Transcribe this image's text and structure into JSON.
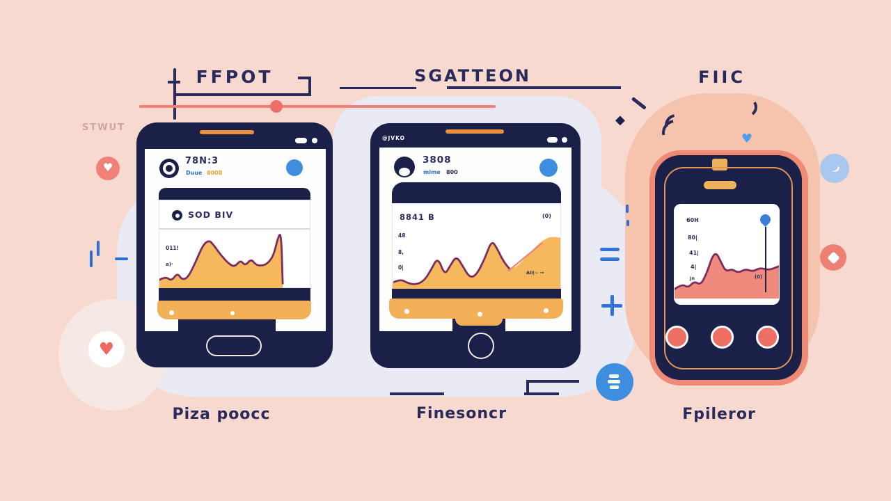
{
  "colors": {
    "background": "#f7d9cf",
    "blob": "#e9eaf3",
    "peach": "#f6c4ac",
    "navy": "#1b2049",
    "line_navy": "#272a5b",
    "orange": "#f2b159",
    "coral": "#ee7f72",
    "salmon": "#ef8177",
    "blue": "#3e8ee0",
    "light_blue": "#a9c8ee",
    "purple": "#7b2d5e"
  },
  "top_labels": {
    "first": "FFPOT",
    "second": "SGATTEON",
    "third": "FIIC"
  },
  "bottom_labels": {
    "first": "Piza poocc",
    "second": "Finesoncr",
    "third": "Fpileror"
  },
  "decor": {
    "side_text": "STWUT"
  },
  "icons": {
    "heart": "♥",
    "diamond": "◆"
  },
  "device1": {
    "header": {
      "title": "78N:3",
      "subtitle": "Duue",
      "subtitle2": "8008"
    },
    "card": {
      "title": "SOD BIV",
      "chart_note_1": "011!",
      "chart_note_2": "a)·"
    }
  },
  "device2": {
    "bezel_text": "@JVKO",
    "header": {
      "title": "3808",
      "subtitle": "mime",
      "subtitle2": "800"
    },
    "card": {
      "title": "8841 B",
      "icon_label": "(0)",
      "ticks": [
        "48",
        "8,",
        "0|"
      ],
      "annotation": "A0|~ →"
    }
  },
  "device3": {
    "ticks": [
      "60H",
      "80|",
      "41|",
      "4|"
    ],
    "note_left": "Jn",
    "note_right": "(0)"
  },
  "chart_data": {
    "device1_chart": {
      "type": "area",
      "description": "wavy area chart with tall spike at right",
      "line_color": "#7b2d5e",
      "fill_color": "#f5b85d",
      "line": [
        [
          0,
          43
        ],
        [
          4,
          40
        ],
        [
          8,
          44
        ],
        [
          12,
          37
        ],
        [
          15,
          43
        ],
        [
          19,
          41
        ],
        [
          24,
          28
        ],
        [
          29,
          13
        ],
        [
          33,
          9
        ],
        [
          36,
          13
        ],
        [
          41,
          22
        ],
        [
          46,
          29
        ],
        [
          50,
          32
        ],
        [
          54,
          26
        ],
        [
          57,
          31
        ],
        [
          61,
          25
        ],
        [
          64,
          30
        ],
        [
          68,
          31
        ],
        [
          72,
          29
        ],
        [
          76,
          22
        ],
        [
          79,
          6
        ],
        [
          81,
          3
        ],
        [
          82,
          46
        ]
      ],
      "base": 50
    },
    "device2_chart": {
      "type": "area",
      "description": "rising multi-peak area chart with projection curve",
      "line_color": "#7b2d5e",
      "fill_color": "#f5b85d",
      "extra_color": "#e8857a",
      "area": [
        [
          0,
          45
        ],
        [
          5,
          43
        ],
        [
          9,
          46
        ],
        [
          14,
          47
        ],
        [
          19,
          44
        ],
        [
          23,
          36
        ],
        [
          27,
          28
        ],
        [
          31,
          40
        ],
        [
          34,
          34
        ],
        [
          38,
          26
        ],
        [
          42,
          34
        ],
        [
          46,
          42
        ],
        [
          50,
          40
        ],
        [
          55,
          28
        ],
        [
          59,
          16
        ],
        [
          62,
          20
        ],
        [
          66,
          30
        ],
        [
          70,
          36
        ],
        [
          75,
          33
        ],
        [
          81,
          25
        ],
        [
          88,
          16
        ],
        [
          94,
          12
        ],
        [
          100,
          13
        ]
      ],
      "line": [
        [
          1,
          45
        ],
        [
          5,
          43
        ],
        [
          9,
          46
        ],
        [
          14,
          47
        ],
        [
          19,
          44
        ],
        [
          23,
          36
        ],
        [
          27,
          27
        ],
        [
          31,
          40
        ],
        [
          34,
          34
        ],
        [
          38,
          26
        ],
        [
          42,
          34
        ],
        [
          46,
          42
        ],
        [
          50,
          40
        ],
        [
          55,
          28
        ],
        [
          59,
          15
        ],
        [
          62,
          20
        ],
        [
          66,
          30
        ],
        [
          70,
          36
        ]
      ],
      "extra": [
        [
          69,
          37
        ],
        [
          76,
          30
        ],
        [
          83,
          23
        ],
        [
          89,
          17
        ]
      ],
      "base": 50
    },
    "device3_chart": {
      "type": "area",
      "description": "small coral area chart with purple line",
      "line_color": "#7b2d5e",
      "fill_color": "#f08a7c",
      "line": [
        [
          0,
          40
        ],
        [
          7,
          36
        ],
        [
          13,
          39
        ],
        [
          19,
          34
        ],
        [
          25,
          37
        ],
        [
          31,
          28
        ],
        [
          36,
          16
        ],
        [
          40,
          13
        ],
        [
          44,
          19
        ],
        [
          49,
          27
        ],
        [
          55,
          25
        ],
        [
          61,
          28
        ],
        [
          68,
          25
        ],
        [
          75,
          27
        ],
        [
          82,
          24
        ],
        [
          90,
          26
        ],
        [
          100,
          23
        ]
      ],
      "base": 47
    }
  }
}
